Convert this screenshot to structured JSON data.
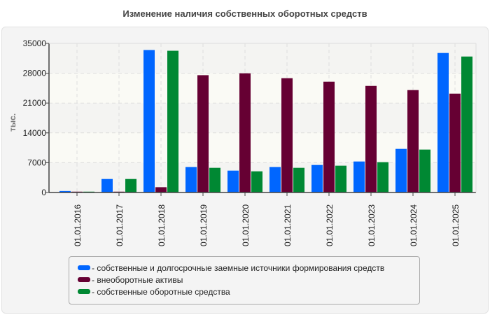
{
  "chart_data": {
    "type": "bar",
    "title": "Изменение наличия собственных оборотных средств",
    "ylabel": "тыс.",
    "xlabel": "",
    "ylim": [
      0,
      35000
    ],
    "yticks": [
      0,
      7000,
      14000,
      21000,
      28000,
      35000
    ],
    "grid": true,
    "legend_position": "bottom",
    "categories": [
      "01.01.2016",
      "01.01.2017",
      "01.01.2018",
      "01.01.2019",
      "01.01.2020",
      "01.01.2021",
      "01.01.2022",
      "01.01.2023",
      "01.01.2024",
      "01.01.2025"
    ],
    "series": [
      {
        "name": "- собственные и долгосрочные заемные источники формирования средств",
        "color": "#0066ff",
        "values": [
          350,
          3170,
          33450,
          5970,
          5140,
          5970,
          6460,
          7280,
          10240,
          32750
        ]
      },
      {
        "name": "- внеоборотные активы",
        "color": "#660033",
        "values": [
          200,
          200,
          1250,
          27540,
          27980,
          26830,
          26010,
          25020,
          24040,
          23210
        ]
      },
      {
        "name": "- собственные оборотные средства",
        "color": "#008833",
        "values": [
          200,
          3170,
          33270,
          5800,
          4970,
          5800,
          6300,
          7120,
          10080,
          31920
        ]
      }
    ]
  }
}
